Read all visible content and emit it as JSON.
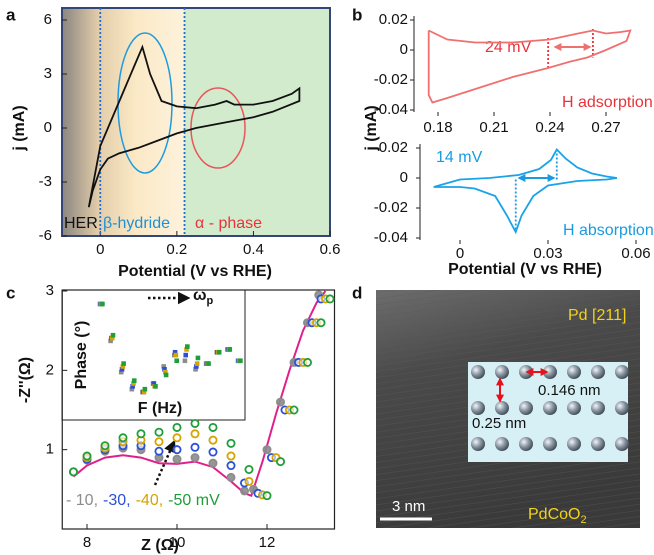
{
  "panel_labels": [
    "a",
    "b",
    "c",
    "d"
  ],
  "chart_data": [
    {
      "type": "line",
      "xlabel": "Potential (V vs RHE)",
      "ylabel": "j (mA)",
      "xlim": [
        -0.1,
        0.6
      ],
      "xticks": [
        0,
        0.2,
        0.4,
        0.6
      ],
      "ylim": [
        -6,
        6
      ],
      "yticks": [
        -6,
        -3,
        0,
        3,
        6
      ],
      "frame": true,
      "vlines": [
        0,
        0.22
      ],
      "vline_color": "#1e6fd0",
      "annotations": [
        {
          "text": "HER",
          "color": "#111111"
        },
        {
          "text": "β-hydride",
          "color": "#1e90d6"
        },
        {
          "text": "α - phase",
          "color": "#e8333a"
        }
      ],
      "series": [
        {
          "color": "#111111",
          "x": [
            -0.03,
            0,
            0.05,
            0.09,
            0.11,
            0.13,
            0.16,
            0.2,
            0.25,
            0.3,
            0.33,
            0.35,
            0.4,
            0.45,
            0.5,
            0.52,
            0.52,
            0.45,
            0.4,
            0.35,
            0.3,
            0.25,
            0.2,
            0.15,
            0.1,
            0.05,
            0.02,
            0,
            -0.02,
            -0.03
          ],
          "values": [
            -4.4,
            -1,
            1.5,
            3.5,
            4.5,
            3,
            1.5,
            1.2,
            1.1,
            1.3,
            1.5,
            1.3,
            1.3,
            1.5,
            1.9,
            2.2,
            1.5,
            0.9,
            0.6,
            0.4,
            0.2,
            0,
            -0.3,
            -0.7,
            -1.1,
            -1.4,
            -1.7,
            -2.3,
            -3.5,
            -4.4
          ]
        }
      ]
    },
    {
      "type": "line",
      "ylabel": "j (mA)",
      "xlim": [
        0.165,
        0.285
      ],
      "xticks": [
        0.18,
        0.21,
        0.24,
        0.27
      ],
      "ylim": [
        -0.04,
        0.02
      ],
      "yticks": [
        -0.04,
        -0.02,
        0,
        0.02
      ],
      "frame": false,
      "vlines": [
        0.239,
        0.263
      ],
      "vline_color": "#e8333a",
      "annotations": [
        {
          "text": "24 mV",
          "color": "#e8333a"
        },
        {
          "text": "H adsorption",
          "color": "#e8333a"
        }
      ],
      "series": [
        {
          "color": "#f07070",
          "x": [
            0.175,
            0.185,
            0.2,
            0.22,
            0.24,
            0.255,
            0.263,
            0.27,
            0.278,
            0.283,
            0.281,
            0.27,
            0.26,
            0.25,
            0.239,
            0.22,
            0.2,
            0.185,
            0.177,
            0.175,
            0.175
          ],
          "values": [
            0.013,
            0.007,
            0.005,
            0.005,
            0.007,
            0.011,
            0.013,
            0.011,
            0.012,
            0.013,
            0.006,
            0,
            -0.005,
            -0.008,
            -0.012,
            -0.018,
            -0.026,
            -0.032,
            -0.035,
            -0.03,
            0.013
          ]
        }
      ]
    },
    {
      "type": "line",
      "xlabel": "Potential (V vs RHE)",
      "xlim": [
        -0.015,
        0.06
      ],
      "xticks": [
        0,
        0.03,
        0.06
      ],
      "ylim": [
        -0.04,
        0.02
      ],
      "yticks": [
        -0.04,
        -0.02,
        0,
        0.02
      ],
      "frame": false,
      "vlines": [
        0.019,
        0.033
      ],
      "vline_color": "#1a9be0",
      "annotations": [
        {
          "text": "14 mV",
          "color": "#1a9be0"
        },
        {
          "text": "H absorption",
          "color": "#1a9be0"
        }
      ],
      "series": [
        {
          "color": "#1aa3e8",
          "x": [
            -0.009,
            0,
            0.01,
            0.02,
            0.027,
            0.031,
            0.033,
            0.036,
            0.04,
            0.045,
            0.05,
            0.0535,
            0.05,
            0.04,
            0.03,
            0.025,
            0.021,
            0.019,
            0.016,
            0.012,
            0.005,
            0,
            -0.009
          ],
          "values": [
            -0.006,
            -0.001,
            0,
            0.002,
            0.006,
            0.012,
            0.019,
            0.013,
            0.007,
            0.003,
            0.001,
            0,
            -0.001,
            -0.002,
            -0.005,
            -0.012,
            -0.025,
            -0.036,
            -0.025,
            -0.012,
            -0.007,
            -0.006,
            -0.006
          ]
        }
      ]
    },
    {
      "type": "scatter",
      "xlabel": "Z  (Ω)",
      "ylabel": "-Z''(Ω)",
      "xlim": [
        7.45,
        13.5
      ],
      "xticks": [
        8,
        10,
        12
      ],
      "ylim": [
        0,
        3
      ],
      "yticks": [
        1,
        2,
        3
      ],
      "frame": true,
      "series": [
        {
          "name": "- 10,",
          "color": "#8c8c8c",
          "x": [
            7.7,
            8.0,
            8.4,
            8.8,
            9.2,
            9.6,
            10.0,
            10.4,
            10.8,
            11.2,
            11.5,
            11.7,
            12.0,
            12.3,
            12.6,
            12.9,
            13.15
          ],
          "values": [
            0.72,
            0.87,
            0.98,
            1.02,
            1.0,
            0.9,
            0.88,
            0.9,
            0.83,
            0.65,
            0.48,
            0.5,
            1.0,
            1.6,
            2.1,
            2.6,
            2.95
          ]
        },
        {
          "name": "-30,",
          "color": "#2a4fd8",
          "x": [
            7.7,
            8.0,
            8.4,
            8.8,
            9.2,
            9.6,
            10.0,
            10.4,
            10.8,
            11.2,
            11.5,
            11.8,
            12.1,
            12.4,
            12.7,
            13.0,
            13.2
          ],
          "values": [
            0.72,
            0.88,
            1.0,
            1.05,
            1.05,
            0.98,
            1.0,
            1.03,
            0.97,
            0.8,
            0.58,
            0.45,
            0.9,
            1.5,
            2.1,
            2.6,
            2.9
          ]
        },
        {
          "name": "-40,",
          "color": "#d6a300",
          "x": [
            7.7,
            8.0,
            8.4,
            8.8,
            9.2,
            9.6,
            10.0,
            10.4,
            10.8,
            11.2,
            11.6,
            11.9,
            12.2,
            12.5,
            12.8,
            13.1,
            13.3
          ],
          "values": [
            0.72,
            0.9,
            1.02,
            1.1,
            1.12,
            1.1,
            1.15,
            1.2,
            1.12,
            0.92,
            0.6,
            0.43,
            0.9,
            1.5,
            2.1,
            2.6,
            2.9
          ]
        },
        {
          "name": "-50 mV",
          "color": "#1f9e3a",
          "x": [
            7.7,
            8.0,
            8.4,
            8.8,
            9.2,
            9.6,
            10.0,
            10.4,
            10.8,
            11.2,
            11.6,
            12.0,
            12.3,
            12.6,
            12.9,
            13.2,
            13.4
          ],
          "values": [
            0.72,
            0.92,
            1.05,
            1.15,
            1.2,
            1.22,
            1.28,
            1.33,
            1.28,
            1.08,
            0.75,
            0.42,
            0.85,
            1.5,
            2.1,
            2.6,
            2.9
          ]
        }
      ],
      "fit": {
        "color": "#e0208a",
        "x": [
          7.7,
          8.0,
          8.4,
          8.8,
          9.2,
          9.6,
          10.0,
          10.4,
          10.8,
          11.2,
          11.5,
          11.65,
          11.9,
          12.2,
          12.5,
          12.8,
          13.1,
          13.3
        ],
        "values": [
          0.66,
          0.8,
          0.9,
          0.93,
          0.9,
          0.83,
          0.82,
          0.85,
          0.78,
          0.6,
          0.45,
          0.42,
          0.85,
          1.45,
          2.0,
          2.5,
          2.85,
          3.0
        ]
      }
    },
    {
      "type": "scatter",
      "xlabel": "F (Hz)",
      "ylabel": "Phase (°)",
      "annotation": "ω",
      "annotation_subscript": "p",
      "series": [
        {
          "color": "#8c8c8c",
          "values": [
            58,
            45,
            34,
            28,
            27,
            30,
            36,
            40,
            38,
            35,
            37,
            41,
            42,
            38
          ]
        },
        {
          "color": "#2a4fd8",
          "values": [
            58,
            46,
            35,
            29,
            27,
            30,
            35,
            41,
            40,
            36,
            37,
            41,
            42,
            38
          ]
        },
        {
          "color": "#d6a300",
          "values": [
            58,
            46,
            36,
            30,
            27,
            29,
            34,
            40,
            42,
            37,
            37,
            41,
            42,
            38
          ]
        },
        {
          "color": "#1f9e3a",
          "values": [
            58,
            47,
            37,
            31,
            28,
            29,
            33,
            38,
            43,
            39,
            37,
            41,
            42,
            38
          ]
        }
      ]
    }
  ],
  "image_panel": {
    "orientation": "Pd [211]",
    "spacing_horizontal": "0.146 nm",
    "spacing_vertical": "0.25 nm",
    "scale_bar": "3 nm",
    "substrate": "PdCoO",
    "substrate_subscript": "2"
  }
}
